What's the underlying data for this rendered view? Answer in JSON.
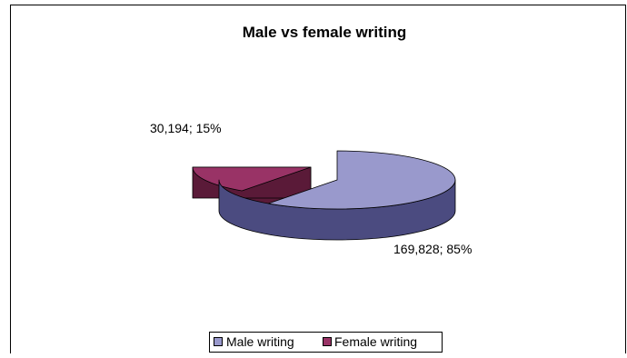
{
  "chart_data": {
    "type": "pie",
    "title": "Male vs female writing",
    "categories": [
      "Male writing",
      "Female writing"
    ],
    "values": [
      169828,
      30194
    ],
    "percents": [
      85,
      15
    ],
    "data_labels": [
      "169,828; 85%",
      "30,194; 15%"
    ],
    "colors": [
      "#9999cc",
      "#993366"
    ],
    "side_colors": [
      "#4b4b80",
      "#5a1a38"
    ],
    "exploded": "Female writing",
    "legend_position": "bottom",
    "style": "3d"
  }
}
